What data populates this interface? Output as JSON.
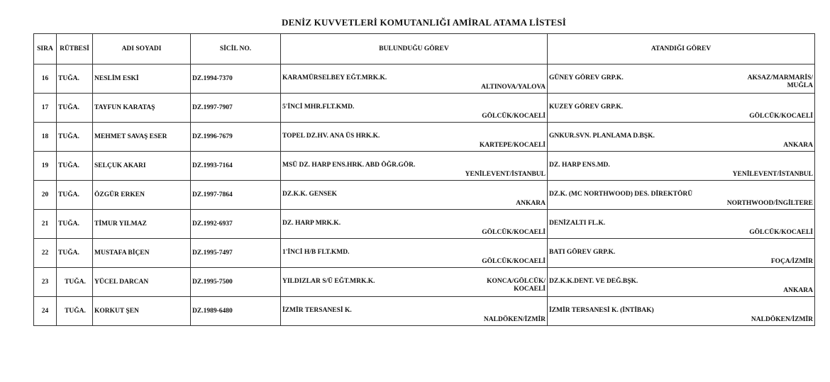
{
  "title": "DENİZ KUVVETLERİ KOMUTANLIĞI AMİRAL ATAMA LİSTESİ",
  "headers": {
    "sira": "SIRA",
    "rutbe": "RÜTBESİ",
    "ad": "ADI SOYADI",
    "sicil": "SİCİL NO.",
    "bulundugu": "BULUNDUĞU GÖREV",
    "atandigi": "ATANDIĞI GÖREV"
  },
  "rows": [
    {
      "sira": "16",
      "rutbe": "TUĞA.",
      "ad": "NESLİM ESKİ",
      "sicil": "DZ.1994-7370",
      "cur_pos": "KARAMÜRSELBEY EĞT.MRK.K.",
      "cur_loc": "ALTINOVA/YALOVA",
      "new_pos": "GÜNEY GÖREV GRP.K.",
      "new_loc": "AKSAZ/MARMARİS/\nMUĞLA"
    },
    {
      "sira": "17",
      "rutbe": "TUĞA.",
      "ad": "TAYFUN KARATAŞ",
      "sicil": "DZ.1997-7907",
      "cur_pos": "5'İNCİ MHR.FLT.KMD.",
      "cur_loc": "GÖLCÜK/KOCAELİ",
      "new_pos": "KUZEY GÖREV GRP.K.",
      "new_loc": "GÖLCÜK/KOCAELİ"
    },
    {
      "sira": "18",
      "rutbe": "TUĞA.",
      "ad": "MEHMET SAVAŞ ESER",
      "sicil": "DZ.1996-7679",
      "cur_pos": "TOPEL DZ.HV. ANA ÜS HRK.K.",
      "cur_loc": "KARTEPE/KOCAELİ",
      "new_pos": "GNKUR.SVN. PLANLAMA D.BŞK.",
      "new_loc": "ANKARA"
    },
    {
      "sira": "19",
      "rutbe": "TUĞA.",
      "ad": "SELÇUK AKARI",
      "sicil": "DZ.1993-7164",
      "cur_pos": "MSÜ DZ. HARP ENS.HRK. ABD ÖĞR.GÖR.",
      "cur_loc": "YENİLEVENT/İSTANBUL",
      "new_pos": "DZ. HARP ENS.MD.",
      "new_loc": "YENİLEVENT/İSTANBUL"
    },
    {
      "sira": "20",
      "rutbe": "TUĞA.",
      "ad": "ÖZGÜR ERKEN",
      "sicil": "DZ.1997-7864",
      "cur_pos": "DZ.K.K. GENSEK",
      "cur_loc": "ANKARA",
      "new_pos": "DZ.K. (MC NORTHWOOD) DES. DİREKTÖRÜ",
      "new_loc": "NORTHWOOD/İNGİLTERE"
    },
    {
      "sira": "21",
      "rutbe": "TUĞA.",
      "ad": "TİMUR YILMAZ",
      "sicil": "DZ.1992-6937",
      "cur_pos": "DZ. HARP MRK.K.",
      "cur_loc": "GÖLCÜK/KOCAELİ",
      "new_pos": "DENİZALTI FL.K.",
      "new_loc": "GÖLCÜK/KOCAELİ"
    },
    {
      "sira": "22",
      "rutbe": "TUĞA.",
      "ad": "MUSTAFA BİÇEN",
      "sicil": "DZ.1995-7497",
      "cur_pos": "1'İNCİ H/B FLT.KMD.",
      "cur_loc": "GÖLCÜK/KOCAELİ",
      "new_pos": "BATI GÖREV GRP.K.",
      "new_loc": "FOÇA/İZMİR"
    },
    {
      "sira": "23",
      "rutbe": "TUĞA.",
      "ad": "YÜCEL DARCAN",
      "sicil": "DZ.1995-7500",
      "cur_pos": "YILDIZLAR S/Ü EĞT.MRK.K.",
      "cur_loc": "KONCA/GÖLCÜK/\nKOCAELİ",
      "new_pos": "DZ.K.K.DENT. VE DEĞ.BŞK.",
      "new_loc": "ANKARA"
    },
    {
      "sira": "24",
      "rutbe": "TUĞA.",
      "ad": "KORKUT ŞEN",
      "sicil": "DZ.1989-6480",
      "cur_pos": "İZMİR TERSANESİ K.",
      "cur_loc": "NALDÖKEN/İZMİR",
      "new_pos": "İZMİR TERSANESİ K.   (İNTİBAK)",
      "new_loc": "NALDÖKEN/İZMİR"
    }
  ]
}
